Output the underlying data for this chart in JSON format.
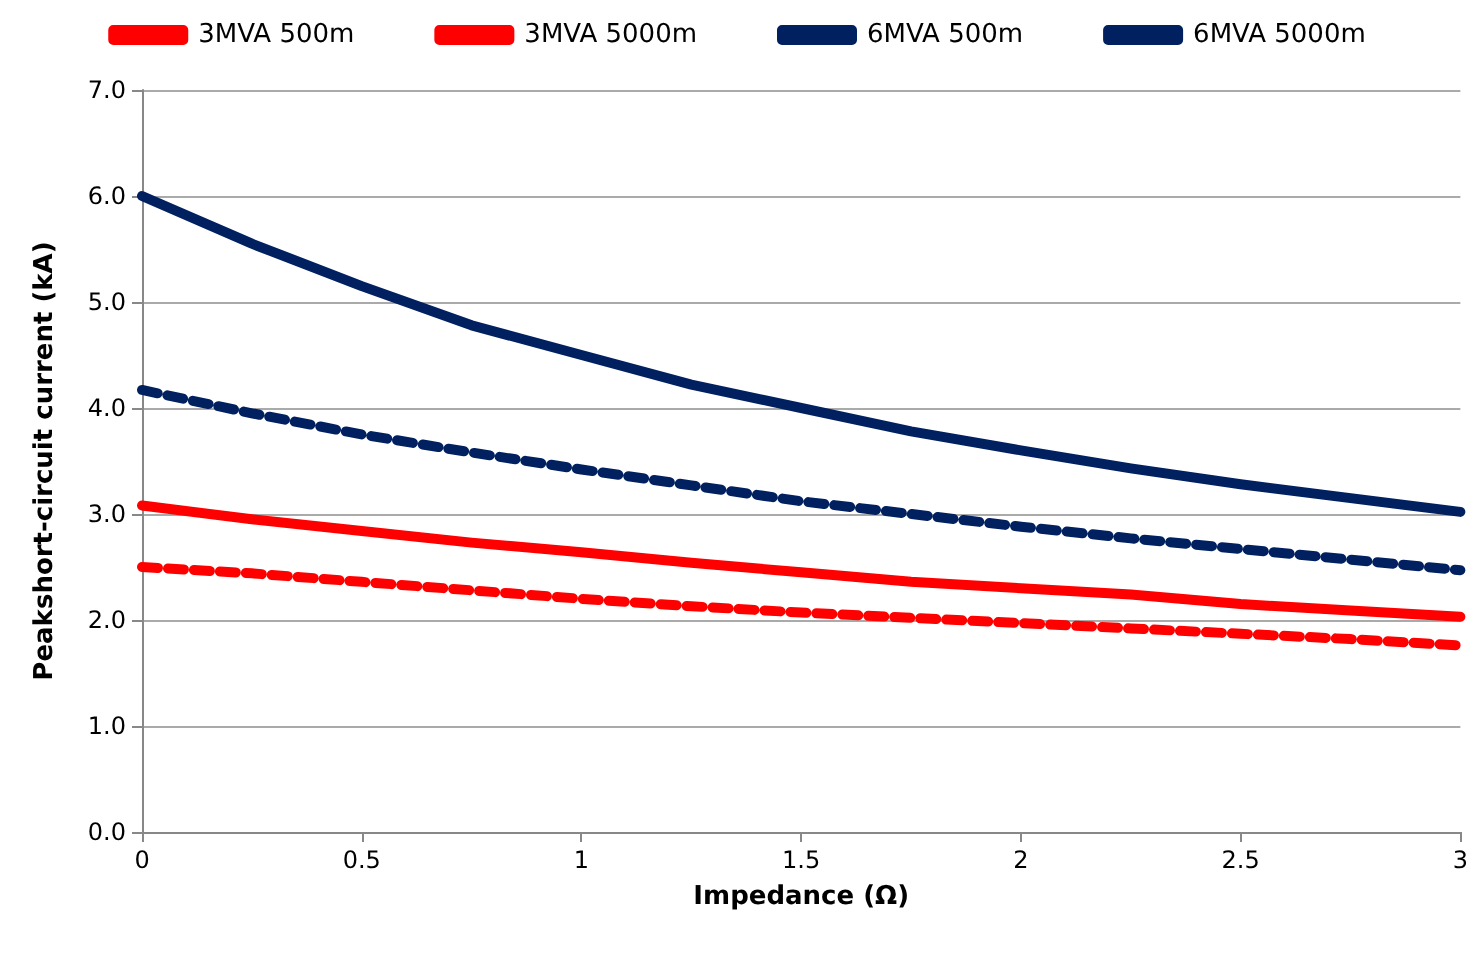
{
  "chart_data": {
    "type": "line",
    "xlabel": "Impedance (Ω)",
    "ylabel": "Peakshort-circuit current (kA)",
    "x": [
      0,
      0.25,
      0.5,
      0.75,
      1,
      1.25,
      1.5,
      1.75,
      2,
      2.25,
      2.5,
      2.75,
      3
    ],
    "series": [
      {
        "name": "3MVA 500m",
        "color": "#ff0000",
        "line_style": "solid",
        "values": [
          3.08,
          2.95,
          2.84,
          2.73,
          2.64,
          2.54,
          2.45,
          2.36,
          2.3,
          2.24,
          2.15,
          2.09,
          2.03
        ]
      },
      {
        "name": "3MVA 5000m",
        "color": "#ff0000",
        "line_style": "dashed",
        "values": [
          2.5,
          2.44,
          2.36,
          2.28,
          2.2,
          2.13,
          2.07,
          2.02,
          1.97,
          1.92,
          1.87,
          1.82,
          1.76
        ]
      },
      {
        "name": "6MVA 500m",
        "color": "#002060",
        "line_style": "solid",
        "values": [
          6.0,
          5.55,
          5.15,
          4.78,
          4.5,
          4.22,
          4.0,
          3.78,
          3.6,
          3.43,
          3.28,
          3.15,
          3.02
        ]
      },
      {
        "name": "6MVA 5000m",
        "color": "#002060",
        "line_style": "dashed",
        "values": [
          4.17,
          3.95,
          3.75,
          3.58,
          3.42,
          3.27,
          3.12,
          3.0,
          2.88,
          2.77,
          2.67,
          2.57,
          2.47
        ]
      }
    ],
    "xlim": [
      0,
      3
    ],
    "xticks": [
      0,
      0.5,
      1,
      1.5,
      2,
      2.5,
      3
    ],
    "ylim": [
      0,
      7
    ],
    "yticks": [
      {
        "value": 0,
        "label": "0.0"
      },
      {
        "value": 1,
        "label": "1.0"
      },
      {
        "value": 2,
        "label": "2.0"
      },
      {
        "value": 3,
        "label": "3.0"
      },
      {
        "value": 4,
        "label": "4.0"
      },
      {
        "value": 5,
        "label": "5.0"
      },
      {
        "value": 6,
        "label": "6.0"
      },
      {
        "value": 7,
        "label": "7.0"
      }
    ],
    "grid": "y",
    "legend": "top",
    "marker": "none"
  }
}
